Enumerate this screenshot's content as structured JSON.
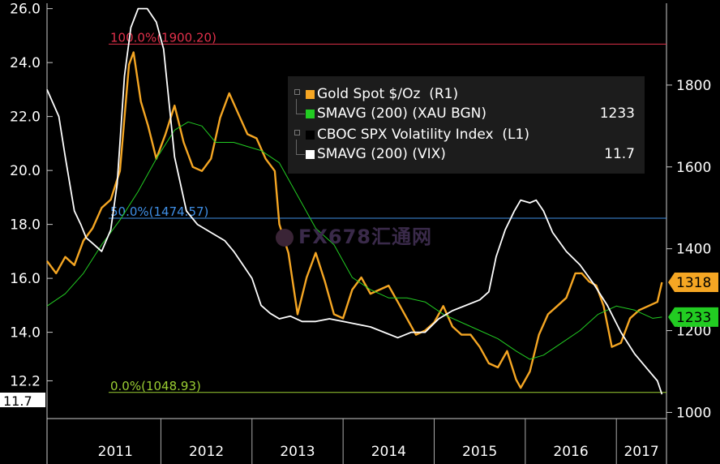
{
  "chart_data": {
    "type": "line",
    "title": "",
    "xlabel": "",
    "x_ticks": [
      "2011",
      "2012",
      "2013",
      "2014",
      "2015",
      "2016",
      "2017"
    ],
    "x_range": [
      2010.75,
      2017.55
    ],
    "left_axis": {
      "ticks": [
        "12.2",
        "14.0",
        "16.0",
        "18.0",
        "20.0",
        "22.0",
        "24.0",
        "26.0"
      ],
      "range": [
        10.8,
        26.2
      ]
    },
    "right_axis": {
      "ticks": [
        "1000",
        "1200",
        "1400",
        "1600",
        "1800"
      ],
      "range": [
        985,
        2000
      ]
    },
    "fib_levels": [
      {
        "label": "100.0%(1900.20)",
        "value": 1900.2,
        "color": "#e0304a"
      },
      {
        "label": "50.0%(1474.57)",
        "value": 1474.57,
        "color": "#3f8fe6"
      },
      {
        "label": "0.0%(1048.93)",
        "value": 1048.93,
        "color": "#9acd32"
      }
    ],
    "series": [
      {
        "name": "Gold Spot $/Oz",
        "axis": "right",
        "color": "#f5a623",
        "x": [
          2010.75,
          2010.85,
          2010.95,
          2011.05,
          2011.15,
          2011.25,
          2011.35,
          2011.45,
          2011.55,
          2011.6,
          2011.65,
          2011.7,
          2011.78,
          2011.86,
          2011.95,
          2012.05,
          2012.15,
          2012.25,
          2012.35,
          2012.45,
          2012.55,
          2012.65,
          2012.75,
          2012.85,
          2012.95,
          2013.05,
          2013.15,
          2013.25,
          2013.3,
          2013.4,
          2013.5,
          2013.6,
          2013.7,
          2013.8,
          2013.9,
          2014.0,
          2014.1,
          2014.2,
          2014.3,
          2014.4,
          2014.5,
          2014.6,
          2014.7,
          2014.8,
          2014.9,
          2015.0,
          2015.1,
          2015.2,
          2015.3,
          2015.4,
          2015.5,
          2015.6,
          2015.7,
          2015.8,
          2015.9,
          2015.95,
          2016.05,
          2016.15,
          2016.25,
          2016.35,
          2016.45,
          2016.55,
          2016.62,
          2016.7,
          2016.78,
          2016.86,
          2016.95,
          2017.05,
          2017.15,
          2017.25,
          2017.35,
          2017.45,
          2017.5
        ],
        "values": [
          1370,
          1340,
          1380,
          1360,
          1420,
          1450,
          1500,
          1520,
          1590,
          1720,
          1850,
          1880,
          1760,
          1700,
          1620,
          1680,
          1750,
          1660,
          1600,
          1590,
          1620,
          1720,
          1780,
          1730,
          1680,
          1670,
          1620,
          1590,
          1460,
          1390,
          1240,
          1330,
          1390,
          1320,
          1240,
          1230,
          1300,
          1330,
          1290,
          1300,
          1310,
          1270,
          1230,
          1190,
          1200,
          1220,
          1260,
          1210,
          1190,
          1190,
          1160,
          1120,
          1110,
          1150,
          1080,
          1060,
          1100,
          1190,
          1240,
          1260,
          1280,
          1340,
          1340,
          1320,
          1310,
          1260,
          1160,
          1170,
          1230,
          1250,
          1260,
          1270,
          1318
        ]
      },
      {
        "name": "SMAVG (200) (XAU BGN)",
        "axis": "right",
        "color": "#22cc22",
        "last_value": "1233",
        "x": [
          2010.75,
          2010.95,
          2011.15,
          2011.35,
          2011.55,
          2011.75,
          2011.95,
          2012.15,
          2012.3,
          2012.45,
          2012.6,
          2012.8,
          2012.95,
          2013.1,
          2013.3,
          2013.5,
          2013.7,
          2013.9,
          2014.1,
          2014.3,
          2014.5,
          2014.7,
          2014.9,
          2015.1,
          2015.3,
          2015.5,
          2015.7,
          2015.9,
          2016.05,
          2016.2,
          2016.4,
          2016.6,
          2016.8,
          2017.0,
          2017.2,
          2017.4,
          2017.5
        ],
        "values": [
          1260,
          1290,
          1340,
          1410,
          1470,
          1540,
          1620,
          1690,
          1710,
          1700,
          1660,
          1660,
          1650,
          1640,
          1610,
          1530,
          1450,
          1410,
          1330,
          1300,
          1280,
          1280,
          1270,
          1240,
          1220,
          1200,
          1180,
          1150,
          1130,
          1140,
          1170,
          1200,
          1240,
          1260,
          1250,
          1230,
          1233
        ]
      },
      {
        "name": "CBOC SPX Volatility Index",
        "axis": "left",
        "color": "#ffffff",
        "x": [
          2010.75,
          2010.88,
          2010.95,
          2011.05,
          2011.12,
          2011.18,
          2011.25,
          2011.35,
          2011.45,
          2011.52,
          2011.56,
          2011.6,
          2011.67,
          2011.75,
          2011.85,
          2011.95,
          2012.03,
          2012.15,
          2012.28,
          2012.4,
          2012.55,
          2012.7,
          2012.8,
          2012.9,
          2013.0,
          2013.1,
          2013.2,
          2013.3,
          2013.42,
          2013.55,
          2013.7,
          2013.85,
          2014.0,
          2014.15,
          2014.3,
          2014.45,
          2014.6,
          2014.75,
          2014.9,
          2015.05,
          2015.2,
          2015.35,
          2015.5,
          2015.6,
          2015.68,
          2015.78,
          2015.88,
          2015.95,
          2016.05,
          2016.12,
          2016.2,
          2016.3,
          2016.45,
          2016.6,
          2016.75,
          2016.9,
          2017.05,
          2017.2,
          2017.35,
          2017.45,
          2017.5
        ],
        "values": [
          23.0,
          22.0,
          20.5,
          18.5,
          18.0,
          17.5,
          17.3,
          17.0,
          17.8,
          19.5,
          21.5,
          23.5,
          25.3,
          26.0,
          26.0,
          25.5,
          24.5,
          20.5,
          18.5,
          18.0,
          17.7,
          17.4,
          17.0,
          16.5,
          16.0,
          15.0,
          14.7,
          14.5,
          14.6,
          14.4,
          14.4,
          14.5,
          14.4,
          14.3,
          14.2,
          14.0,
          13.8,
          14.0,
          14.0,
          14.5,
          14.8,
          15.0,
          15.2,
          15.5,
          16.8,
          17.8,
          18.5,
          18.9,
          18.8,
          18.9,
          18.5,
          17.7,
          17.0,
          16.5,
          15.8,
          15.0,
          14.0,
          13.2,
          12.6,
          12.2,
          11.7
        ]
      },
      {
        "name": "SMAVG (200) (VIX)",
        "axis": "left",
        "color": "#ffffff",
        "last_value": "11.7"
      }
    ],
    "legend": {
      "placement": "top-right",
      "items": [
        {
          "label": "Gold Spot $/Oz  (R1)",
          "value": "",
          "color": "#f5a623"
        },
        {
          "label": "SMAVG (200) (XAU BGN)",
          "value": "1233",
          "color": "#22cc22"
        },
        {
          "label": "CBOC SPX Volatility Index  (L1)",
          "value": "",
          "color": "#000000"
        },
        {
          "label": "SMAVG (200) (VIX)",
          "value": "11.7",
          "color": "#ffffff"
        }
      ]
    },
    "last_value_tags": [
      {
        "text": "1318",
        "value": 1318,
        "axis": "right",
        "color": "#f5a623",
        "text_color": "#000000"
      },
      {
        "text": "1233",
        "value": 1233,
        "axis": "right",
        "color": "#22cc22",
        "text_color": "#000000"
      },
      {
        "text": "11.7",
        "value": 11.7,
        "axis": "left",
        "color": "#ffffff",
        "text_color": "#000000"
      }
    ]
  },
  "watermark": {
    "text": "FX678",
    "suffix": "汇通网"
  }
}
